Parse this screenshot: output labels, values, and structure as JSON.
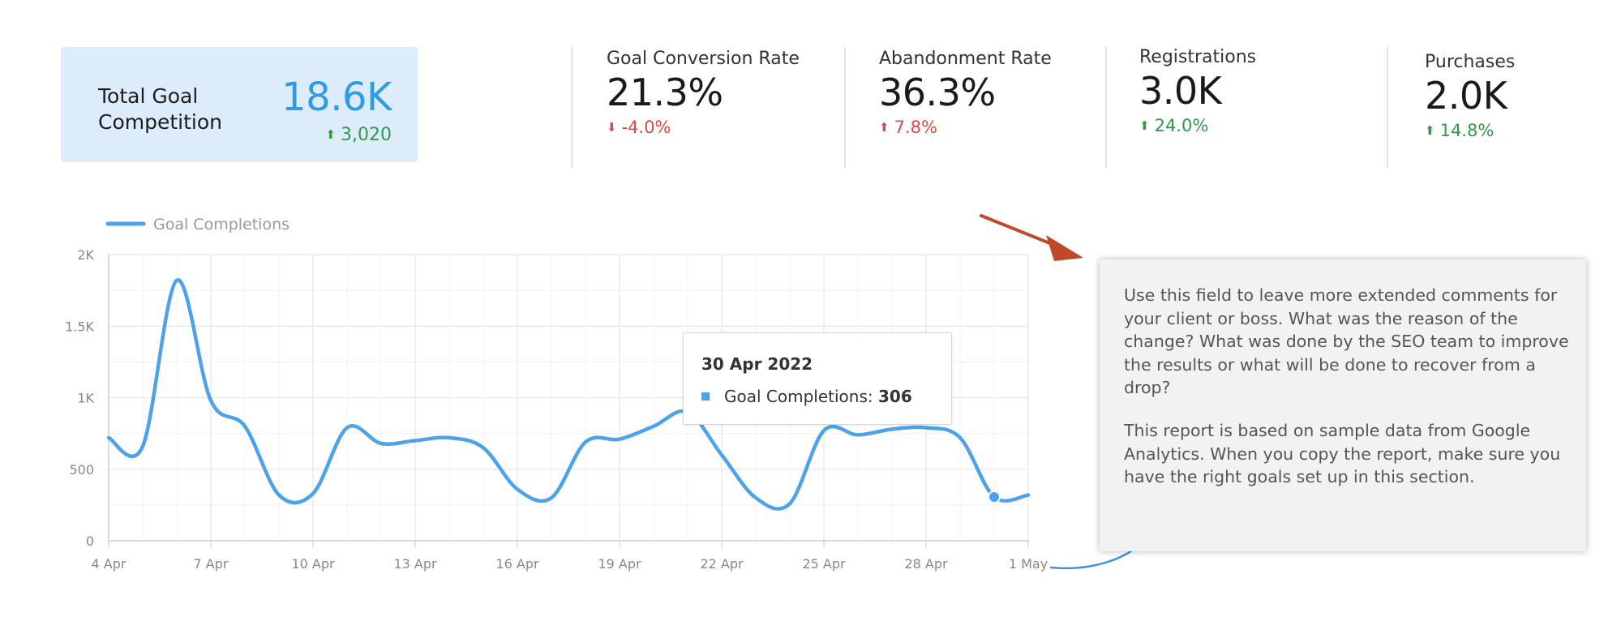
{
  "kpis": {
    "main": {
      "label": "Total Goal Competition",
      "value": "18.6K",
      "delta": "3,020",
      "direction": "up"
    },
    "items": [
      {
        "title": "Goal Conversion Rate",
        "value": "21.3%",
        "delta": "-4.0%",
        "direction": "down"
      },
      {
        "title": "Abandonment Rate",
        "value": "36.3%",
        "delta": "7.8%",
        "direction": "up-bad"
      },
      {
        "title": "Registrations",
        "value": "3.0K",
        "delta": "24.0%",
        "direction": "up"
      },
      {
        "title": "Purchases",
        "value": "2.0K",
        "delta": "14.8%",
        "direction": "up"
      }
    ]
  },
  "colors": {
    "series": "#4da3ea",
    "positive": "#2f9a47",
    "negative": "#e04848",
    "callout_arrow": "#c0492a"
  },
  "chart_data": {
    "type": "line",
    "legend": "Goal Completions",
    "series": [
      {
        "name": "Goal Completions",
        "values": [
          720,
          660,
          1820,
          980,
          800,
          320,
          330,
          790,
          680,
          700,
          720,
          650,
          360,
          300,
          690,
          710,
          800,
          900,
          600,
          300,
          260,
          770,
          740,
          780,
          790,
          720,
          306,
          320
        ]
      }
    ],
    "x_ticks": [
      "4 Apr",
      "7 Apr",
      "10 Apr",
      "13 Apr",
      "16 Apr",
      "19 Apr",
      "22 Apr",
      "25 Apr",
      "28 Apr",
      "1 May"
    ],
    "y_ticks": [
      "0",
      "500",
      "1K",
      "1.5K",
      "2K"
    ],
    "ylim": [
      0,
      2000
    ],
    "grid": true,
    "tooltip": {
      "date": "30 Apr 2022",
      "label": "Goal Completions:",
      "value": "306"
    }
  },
  "comment": {
    "paragraph1": "Use this field to leave more extended comments for your client or boss. What was the reason of the change? What was done by the SEO team to improve the results or what will be done to recover from a drop?",
    "paragraph2": "This report is based on sample data from Google Analytics. When you copy the report, make sure you have the right goals set up in this section."
  }
}
